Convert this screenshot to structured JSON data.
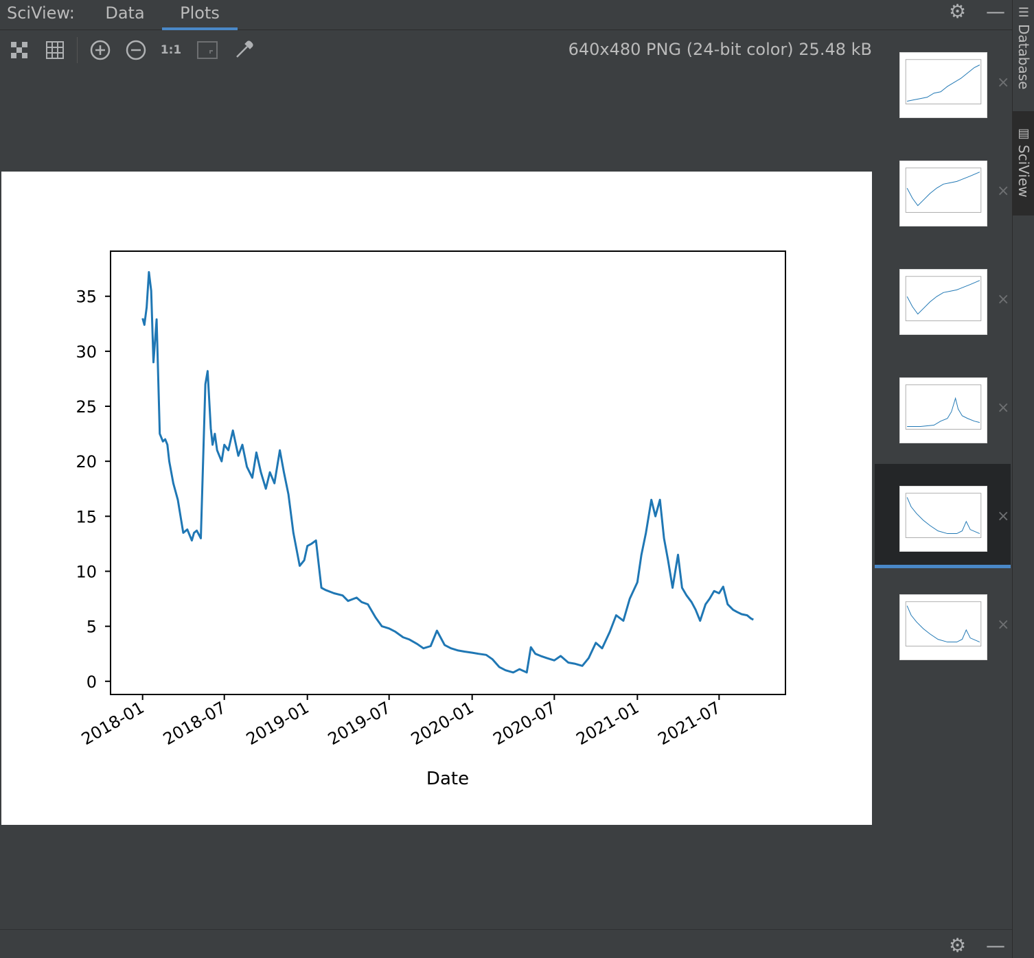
{
  "header": {
    "title": "SciView:",
    "tabs": [
      {
        "label": "Data",
        "active": false
      },
      {
        "label": "Plots",
        "active": true
      }
    ],
    "icons": [
      "gear-icon",
      "minimize-icon"
    ]
  },
  "toolbar": {
    "buttons": [
      {
        "name": "fit-zoom-icon",
        "glyph": "⛶"
      },
      {
        "name": "grid-icon",
        "glyph": "▦"
      },
      {
        "name": "zoom-in-icon",
        "glyph": "⊕"
      },
      {
        "name": "zoom-out-icon",
        "glyph": "⊖"
      },
      {
        "name": "actual-size-icon",
        "glyph": "1:1"
      },
      {
        "name": "fit-window-icon",
        "glyph": "◲"
      },
      {
        "name": "color-picker-icon",
        "glyph": "✎"
      }
    ],
    "image_info": "640x480 PNG (24-bit color) 25.48 kB"
  },
  "thumbnails": {
    "count": 6,
    "selected_index": 4,
    "close_glyph": "×",
    "shapes": [
      "rising",
      "rising-dip",
      "rising-dip",
      "peak",
      "falling-rebound",
      "falling-rebound"
    ]
  },
  "right_strip": {
    "tabs": [
      {
        "label": "Database",
        "active": false,
        "icon": "database-icon"
      },
      {
        "label": "SciView",
        "active": true,
        "icon": "sciview-icon"
      }
    ]
  },
  "bottom_bar": {
    "icons": [
      "gear-icon",
      "minimize-icon"
    ]
  },
  "chart_data": {
    "type": "line",
    "xlabel": "Date",
    "ylabel": "",
    "title": "",
    "x_tick_labels": [
      "2018-01",
      "2018-07",
      "2019-01",
      "2019-07",
      "2020-01",
      "2020-07",
      "2021-01",
      "2021-07"
    ],
    "y_ticks": [
      0,
      5,
      10,
      15,
      20,
      25,
      30,
      35
    ],
    "ylim": [
      -1.2,
      39.1
    ],
    "xlim": [
      "2017-10-22",
      "2021-11-25"
    ],
    "grid": false,
    "line_color": "#1f77b4",
    "series": [
      {
        "x": [
          "2018-01-01",
          "2018-01-05",
          "2018-01-10",
          "2018-01-15",
          "2018-01-20",
          "2018-01-25",
          "2018-02-01",
          "2018-02-08",
          "2018-02-15",
          "2018-02-20",
          "2018-02-25",
          "2018-03-01",
          "2018-03-10",
          "2018-03-20",
          "2018-04-01",
          "2018-04-10",
          "2018-04-20",
          "2018-04-25",
          "2018-05-01",
          "2018-05-10",
          "2018-05-20",
          "2018-05-25",
          "2018-06-01",
          "2018-06-05",
          "2018-06-10",
          "2018-06-15",
          "2018-06-20",
          "2018-06-25",
          "2018-07-01",
          "2018-07-10",
          "2018-07-20",
          "2018-08-01",
          "2018-08-10",
          "2018-08-20",
          "2018-09-01",
          "2018-09-10",
          "2018-09-20",
          "2018-10-01",
          "2018-10-10",
          "2018-10-20",
          "2018-11-01",
          "2018-11-10",
          "2018-11-20",
          "2018-12-01",
          "2018-12-15",
          "2018-12-25",
          "2019-01-01",
          "2019-01-10",
          "2019-01-20",
          "2019-02-01",
          "2019-02-10",
          "2019-03-01",
          "2019-03-20",
          "2019-04-01",
          "2019-04-20",
          "2019-05-01",
          "2019-05-15",
          "2019-06-01",
          "2019-06-15",
          "2019-07-01",
          "2019-07-15",
          "2019-08-01",
          "2019-08-15",
          "2019-09-01",
          "2019-09-15",
          "2019-10-01",
          "2019-10-15",
          "2019-11-01",
          "2019-11-15",
          "2019-12-01",
          "2019-12-15",
          "2020-01-01",
          "2020-01-15",
          "2020-02-01",
          "2020-02-15",
          "2020-03-01",
          "2020-03-15",
          "2020-04-01",
          "2020-04-15",
          "2020-05-01",
          "2020-05-10",
          "2020-05-20",
          "2020-06-01",
          "2020-06-15",
          "2020-07-01",
          "2020-07-15",
          "2020-08-01",
          "2020-08-15",
          "2020-09-01",
          "2020-09-15",
          "2020-10-01",
          "2020-10-15",
          "2020-11-01",
          "2020-11-15",
          "2020-12-01",
          "2020-12-15",
          "2021-01-01",
          "2021-01-10",
          "2021-01-20",
          "2021-02-01",
          "2021-02-10",
          "2021-02-20",
          "2021-03-01",
          "2021-03-10",
          "2021-03-20",
          "2021-04-01",
          "2021-04-10",
          "2021-04-20",
          "2021-05-01",
          "2021-05-10",
          "2021-05-20",
          "2021-06-01",
          "2021-06-10",
          "2021-06-20",
          "2021-07-01",
          "2021-07-10",
          "2021-07-20",
          "2021-08-01",
          "2021-08-10",
          "2021-08-20",
          "2021-09-01",
          "2021-09-10",
          "2021-09-15"
        ],
        "y": [
          33.0,
          32.4,
          34.0,
          37.2,
          35.5,
          29.0,
          32.9,
          22.5,
          21.8,
          22.0,
          21.5,
          20.0,
          18.0,
          16.5,
          13.5,
          13.8,
          12.8,
          13.5,
          13.7,
          13.0,
          27.0,
          28.2,
          23.0,
          21.5,
          22.5,
          21.0,
          20.5,
          20.0,
          21.5,
          21.0,
          22.8,
          20.5,
          21.5,
          19.5,
          18.5,
          20.8,
          19.0,
          17.5,
          19.0,
          18.0,
          21.0,
          19.0,
          17.0,
          13.5,
          10.5,
          11.0,
          12.3,
          12.5,
          12.8,
          8.5,
          8.3,
          8.0,
          7.8,
          7.3,
          7.6,
          7.2,
          7.0,
          5.8,
          5.0,
          4.8,
          4.5,
          4.0,
          3.8,
          3.4,
          3.0,
          3.2,
          4.6,
          3.3,
          3.0,
          2.8,
          2.7,
          2.6,
          2.5,
          2.4,
          2.0,
          1.3,
          1.0,
          0.8,
          1.1,
          0.8,
          3.1,
          2.5,
          2.3,
          2.1,
          1.9,
          2.3,
          1.7,
          1.6,
          1.4,
          2.1,
          3.5,
          3.0,
          4.5,
          6.0,
          5.5,
          7.5,
          9.0,
          11.5,
          13.5,
          16.5,
          15.0,
          16.5,
          13.0,
          11.0,
          8.5,
          11.5,
          8.5,
          7.8,
          7.2,
          6.5,
          5.5,
          7.0,
          7.5,
          8.2,
          8.0,
          8.6,
          7.0,
          6.5,
          6.3,
          6.1,
          6.0,
          5.7,
          5.6
        ]
      }
    ]
  }
}
